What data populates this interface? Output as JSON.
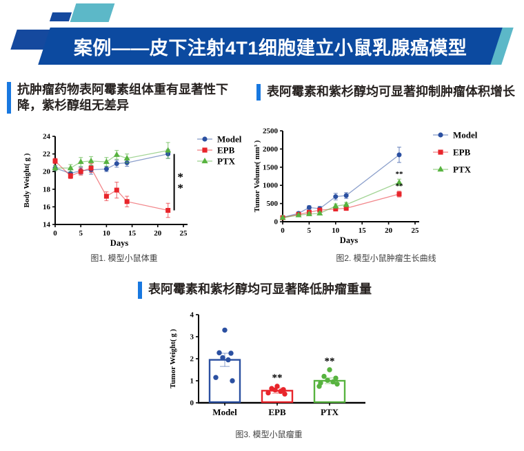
{
  "header": {
    "title": "案例——皮下注射4T1细胞建立小鼠乳腺癌模型",
    "banner_color": "#0c4aa0",
    "dark_blue": "#15499e",
    "teal_color": "#5cb8c8"
  },
  "sections": {
    "accent_color": "#1878e0",
    "left_title": "抗肿瘤药物表阿霉素组体重有显著性下降，紫杉醇组无差异",
    "right_title": "表阿霉素和紫杉醇均可显著抑制肿瘤体积增长",
    "bottom_title": "表阿霉素和紫杉醇均可显著降低肿瘤重量"
  },
  "captions": {
    "fig1": "图1. 模型小鼠体重",
    "fig2": "图2. 模型小鼠肿瘤生长曲线",
    "fig3": "图3. 模型小鼠瘤重"
  },
  "chart_data": [
    {
      "type": "line",
      "title": "",
      "xlabel": "Days",
      "ylabel": "Body Weight( g )",
      "xlim": [
        0,
        25
      ],
      "ylim": [
        14,
        24
      ],
      "xticks": [
        0,
        5,
        10,
        15,
        20,
        25
      ],
      "yticks": [
        14,
        16,
        18,
        20,
        22,
        24
      ],
      "grid": false,
      "legend_position": "right",
      "x": [
        0,
        3,
        5,
        7,
        10,
        12,
        14,
        22
      ],
      "series": [
        {
          "name": "Model",
          "color": "#2b50a1",
          "marker": "circle",
          "values": [
            20.4,
            19.8,
            20.1,
            20.2,
            20.3,
            20.9,
            21.0,
            22.0
          ],
          "errors": [
            0.3,
            0.4,
            0.4,
            0.5,
            0.3,
            0.4,
            0.4,
            0.5
          ]
        },
        {
          "name": "EPB",
          "color": "#e8252b",
          "marker": "square",
          "values": [
            21.2,
            19.5,
            20.0,
            20.4,
            17.2,
            17.9,
            16.6,
            15.6
          ],
          "errors": [
            0.3,
            0.3,
            0.4,
            0.5,
            0.5,
            0.9,
            0.6,
            0.8
          ]
        },
        {
          "name": "PTX",
          "color": "#57b33f",
          "marker": "triangle",
          "values": [
            20.4,
            20.4,
            21.1,
            21.2,
            21.1,
            21.9,
            21.5,
            22.4
          ],
          "errors": [
            0.3,
            0.4,
            0.5,
            0.5,
            0.5,
            0.5,
            0.5,
            0.9
          ]
        }
      ],
      "bracket": {
        "x": 23.2,
        "y1": 15.6,
        "y2": 22.0,
        "stars": "**"
      }
    },
    {
      "type": "line",
      "title": "",
      "xlabel": "Days",
      "ylabel": "Tumor Volume( mm³ )",
      "xlim": [
        0,
        25
      ],
      "ylim": [
        0,
        2500
      ],
      "xticks": [
        0,
        5,
        10,
        15,
        20,
        25
      ],
      "yticks": [
        0,
        500,
        1000,
        1500,
        2000,
        2500
      ],
      "grid": false,
      "legend_position": "right",
      "x": [
        0,
        3,
        5,
        7,
        10,
        12,
        22
      ],
      "series": [
        {
          "name": "Model",
          "color": "#2b50a1",
          "marker": "circle",
          "values": [
            120,
            230,
            390,
            360,
            690,
            720,
            1840
          ],
          "errors": [
            30,
            40,
            50,
            60,
            90,
            80,
            210
          ]
        },
        {
          "name": "EPB",
          "color": "#e8252b",
          "marker": "square",
          "values": [
            110,
            200,
            260,
            320,
            350,
            370,
            760
          ],
          "errors": [
            20,
            30,
            40,
            50,
            50,
            60,
            80
          ]
        },
        {
          "name": "PTX",
          "color": "#57b33f",
          "marker": "triangle",
          "values": [
            110,
            180,
            210,
            230,
            430,
            470,
            1080
          ],
          "errors": [
            20,
            30,
            40,
            40,
            60,
            60,
            90
          ]
        }
      ],
      "point_labels": [
        {
          "series": "PTX",
          "x": 22,
          "text": "**"
        },
        {
          "series": "EPB",
          "x": 22,
          "text": "**"
        }
      ]
    },
    {
      "type": "bar",
      "title": "",
      "xlabel": "",
      "ylabel": "Tumor Weight( g )",
      "ylim": [
        0,
        4
      ],
      "yticks": [
        0,
        1,
        2,
        3,
        4
      ],
      "grid": false,
      "categories": [
        "Model",
        "EPB",
        "PTX"
      ],
      "values": [
        1.95,
        0.55,
        1.0
      ],
      "errors": [
        0.3,
        0.12,
        0.13
      ],
      "colors": [
        "#2b50a1",
        "#e8252b",
        "#57b33f"
      ],
      "points": [
        [
          3.3,
          2.27,
          2.25,
          2.05,
          1.95,
          1.15,
          1.0
        ],
        [
          0.75,
          0.65,
          0.6,
          0.58,
          0.52,
          0.45,
          0.4
        ],
        [
          1.5,
          1.2,
          1.12,
          1.02,
          0.95,
          0.9,
          0.85,
          0.75
        ]
      ],
      "sig": [
        "",
        "**",
        "**"
      ]
    }
  ]
}
